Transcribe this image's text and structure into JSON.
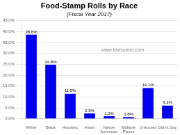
{
  "chart_data": {
    "type": "bar",
    "title": "Food-Stamp Rolls by Race",
    "subtitle": "(Fiscal Year 2017)",
    "annotation": "www.trivisonno.com",
    "categories": [
      "White",
      "Black",
      "Hispanic",
      "Asian",
      "Native\nAmerican",
      "Multiple\nRaces",
      "Unknown",
      "Didn't Say"
    ],
    "values": [
      38.6,
      24.8,
      11.5,
      2.5,
      1.2,
      0.8,
      14.1,
      6.1
    ],
    "value_labels": [
      "38.6%",
      "24.8%",
      "11.5%",
      "2.5%",
      "1.2%",
      "0.8%",
      "14.1%",
      "6.1%"
    ],
    "data_labels": true,
    "color": "#0000EE",
    "ylim": [
      0,
      45
    ],
    "yticks": [
      {
        "value": 0,
        "label": "0.0%"
      },
      {
        "value": 5,
        "label": "5.0%"
      },
      {
        "value": 10,
        "label": "10.0%"
      },
      {
        "value": 15,
        "label": "15.0%"
      },
      {
        "value": 20,
        "label": "20.0%"
      },
      {
        "value": 25,
        "label": "25.0%"
      },
      {
        "value": 30,
        "label": "30.0%"
      },
      {
        "value": 35,
        "label": "35.0%"
      },
      {
        "value": 40,
        "label": "40.0%"
      },
      {
        "value": 45,
        "label": "45.0%"
      }
    ],
    "grid": true
  }
}
